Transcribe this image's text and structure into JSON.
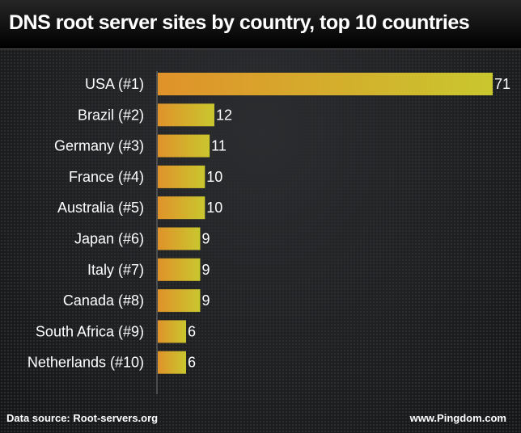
{
  "title": "DNS root server sites by country, top 10 countries",
  "footer": {
    "source": "Data source: Root-servers.org",
    "brand": "www.Pingdom.com"
  },
  "chart_data": {
    "type": "bar",
    "orientation": "horizontal",
    "title": "DNS root server sites by country, top 10 countries",
    "categories": [
      "USA (#1)",
      "Brazil (#2)",
      "Germany (#3)",
      "France (#4)",
      "Australia (#5)",
      "Japan (#6)",
      "Italy (#7)",
      "Canada (#8)",
      "South Africa (#9)",
      "Netherlands (#10)"
    ],
    "values": [
      71,
      12,
      11,
      10,
      10,
      9,
      9,
      9,
      6,
      6
    ],
    "xlabel": "",
    "ylabel": "",
    "xlim": [
      0,
      71
    ],
    "grid": false,
    "colors": {
      "bar_start": "#e0922a",
      "bar_end": "#c9c72e",
      "text": "#ffffff"
    }
  }
}
